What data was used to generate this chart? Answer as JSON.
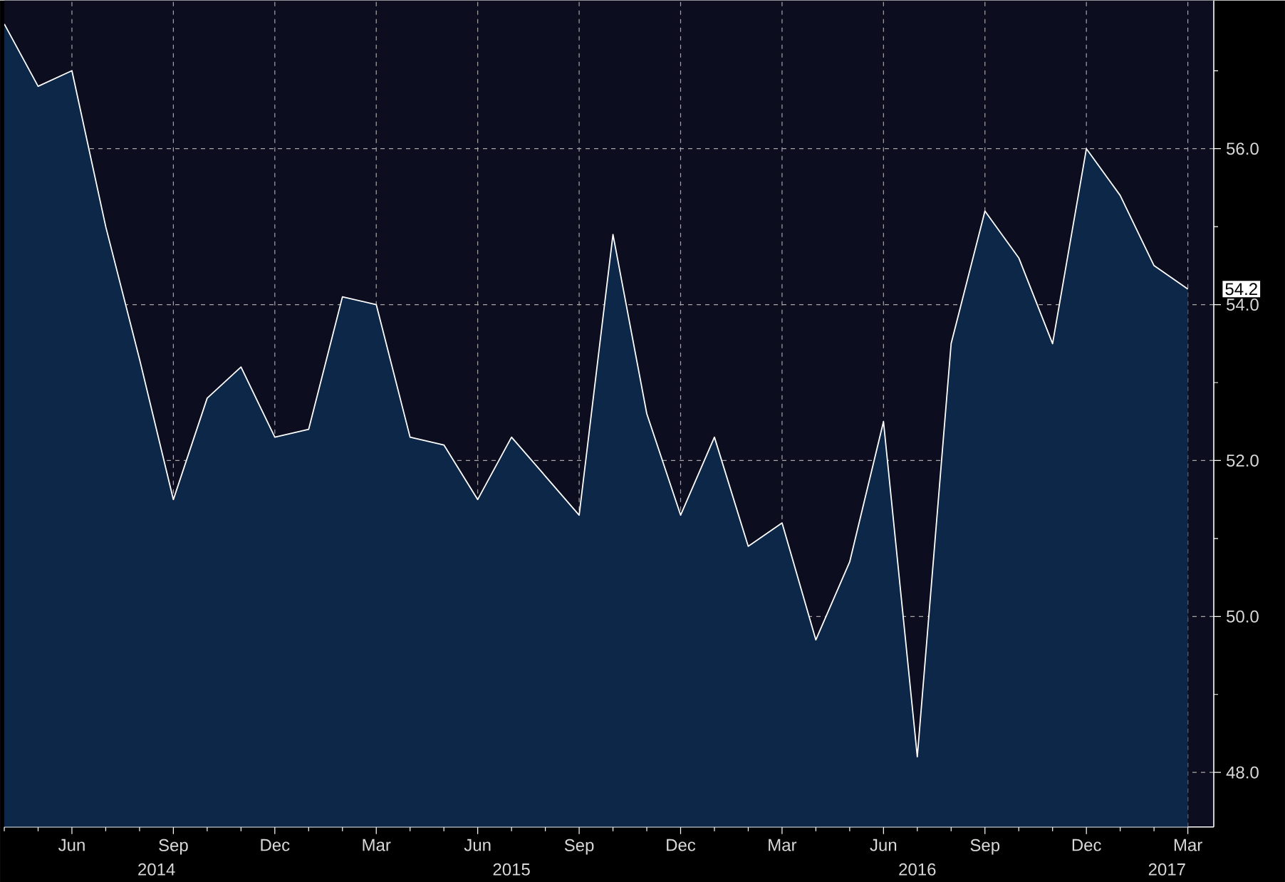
{
  "chart_data": {
    "type": "area",
    "x": [
      "2014-04",
      "2014-05",
      "2014-06",
      "2014-07",
      "2014-08",
      "2014-09",
      "2014-10",
      "2014-11",
      "2014-12",
      "2015-01",
      "2015-02",
      "2015-03",
      "2015-04",
      "2015-05",
      "2015-06",
      "2015-07",
      "2015-08",
      "2015-09",
      "2015-10",
      "2015-11",
      "2015-12",
      "2016-01",
      "2016-02",
      "2016-03",
      "2016-04",
      "2016-05",
      "2016-06",
      "2016-07",
      "2016-08",
      "2016-09",
      "2016-10",
      "2016-11",
      "2016-12",
      "2017-01",
      "2017-02",
      "2017-03"
    ],
    "series": [
      {
        "color": "#0c2748",
        "values": [
          57.6,
          56.8,
          57.0,
          55.0,
          53.3,
          51.5,
          52.8,
          53.2,
          52.3,
          52.4,
          54.1,
          54.0,
          52.3,
          52.2,
          51.5,
          52.3,
          51.8,
          51.3,
          54.9,
          52.6,
          51.3,
          52.3,
          50.9,
          51.2,
          49.7,
          50.7,
          52.5,
          48.2,
          53.5,
          55.2,
          54.6,
          53.5,
          56.0,
          55.4,
          54.5,
          54.2
        ]
      }
    ],
    "xlim": [
      "2014-04-01",
      "2017-03-24"
    ],
    "xticks": [
      {
        "value": "2014-04",
        "label": null
      },
      {
        "value": "2014-05",
        "label": null
      },
      {
        "value": "2014-06",
        "label": "Jun"
      },
      {
        "value": "2014-07",
        "label": null
      },
      {
        "value": "2014-08",
        "label": null
      },
      {
        "value": "2014-09",
        "label": "Sep"
      },
      {
        "value": "2014-10",
        "label": null
      },
      {
        "value": "2014-11",
        "label": null
      },
      {
        "value": "2014-12",
        "label": "Dec"
      },
      {
        "value": "2015-01",
        "label": null
      },
      {
        "value": "2015-02",
        "label": null
      },
      {
        "value": "2015-03",
        "label": "Mar"
      },
      {
        "value": "2015-04",
        "label": null
      },
      {
        "value": "2015-05",
        "label": null
      },
      {
        "value": "2015-06",
        "label": "Jun"
      },
      {
        "value": "2015-07",
        "label": null
      },
      {
        "value": "2015-08",
        "label": null
      },
      {
        "value": "2015-09",
        "label": "Sep"
      },
      {
        "value": "2015-10",
        "label": null
      },
      {
        "value": "2015-11",
        "label": null
      },
      {
        "value": "2015-12",
        "label": "Dec"
      },
      {
        "value": "2016-01",
        "label": null
      },
      {
        "value": "2016-02",
        "label": null
      },
      {
        "value": "2016-03",
        "label": "Mar"
      },
      {
        "value": "2016-04",
        "label": null
      },
      {
        "value": "2016-05",
        "label": null
      },
      {
        "value": "2016-06",
        "label": "Jun"
      },
      {
        "value": "2016-07",
        "label": null
      },
      {
        "value": "2016-08",
        "label": null
      },
      {
        "value": "2016-09",
        "label": "Sep"
      },
      {
        "value": "2016-10",
        "label": null
      },
      {
        "value": "2016-11",
        "label": null
      },
      {
        "value": "2016-12",
        "label": "Dec"
      },
      {
        "value": "2017-01",
        "label": null
      },
      {
        "value": "2017-02",
        "label": null
      },
      {
        "value": "2017-03",
        "label": "Mar"
      }
    ],
    "ylim": [
      47.3,
      57.9
    ],
    "yticks": [
      {
        "value": 48,
        "label": "48.0"
      },
      {
        "value": 49,
        "label": null
      },
      {
        "value": 50,
        "label": "50.0"
      },
      {
        "value": 51,
        "label": null
      },
      {
        "value": 52,
        "label": "52.0"
      },
      {
        "value": 53,
        "label": null
      },
      {
        "value": 54,
        "label": "54.0"
      },
      {
        "value": 55,
        "label": null
      },
      {
        "value": 56,
        "label": "56.0"
      },
      {
        "value": 57,
        "label": null
      }
    ],
    "grid": true,
    "annotations": [
      "2014",
      "2015",
      "2016",
      "2017",
      {
        "text": "54.2",
        "x": "2017-03",
        "y": 54.2
      }
    ]
  }
}
